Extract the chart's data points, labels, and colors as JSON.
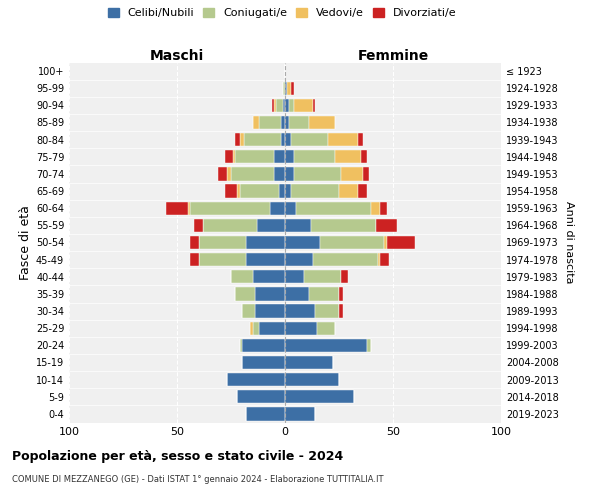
{
  "age_groups_display": [
    "100+",
    "95-99",
    "90-94",
    "85-89",
    "80-84",
    "75-79",
    "70-74",
    "65-69",
    "60-64",
    "55-59",
    "50-54",
    "45-49",
    "40-44",
    "35-39",
    "30-34",
    "25-29",
    "20-24",
    "15-19",
    "10-14",
    "5-9",
    "0-4"
  ],
  "birth_years_display": [
    "≤ 1923",
    "1924-1928",
    "1929-1933",
    "1934-1938",
    "1939-1943",
    "1944-1948",
    "1949-1953",
    "1954-1958",
    "1959-1963",
    "1964-1968",
    "1969-1973",
    "1974-1978",
    "1979-1983",
    "1984-1988",
    "1989-1993",
    "1994-1998",
    "1999-2003",
    "2004-2008",
    "2009-2013",
    "2014-2018",
    "2019-2023"
  ],
  "colors": {
    "celibi": "#3d6fa5",
    "coniugati": "#b5c98e",
    "vedovi": "#f0c060",
    "divorziati": "#cc2222"
  },
  "maschi": {
    "celibi": [
      18,
      22,
      27,
      20,
      20,
      12,
      14,
      14,
      15,
      18,
      18,
      13,
      7,
      3,
      5,
      5,
      2,
      2,
      1,
      0,
      0
    ],
    "coniugati": [
      0,
      0,
      0,
      0,
      1,
      3,
      6,
      9,
      10,
      22,
      22,
      25,
      37,
      18,
      20,
      18,
      17,
      10,
      3,
      1,
      0
    ],
    "vedovi": [
      0,
      0,
      0,
      0,
      0,
      1,
      0,
      0,
      0,
      0,
      0,
      0,
      1,
      1,
      2,
      1,
      2,
      3,
      1,
      0,
      0
    ],
    "divorziati": [
      0,
      0,
      0,
      0,
      0,
      0,
      0,
      0,
      0,
      4,
      4,
      4,
      10,
      6,
      4,
      4,
      2,
      0,
      1,
      0,
      0
    ]
  },
  "femmine": {
    "celibi": [
      14,
      32,
      25,
      22,
      38,
      15,
      14,
      11,
      9,
      13,
      16,
      12,
      5,
      3,
      4,
      4,
      3,
      2,
      2,
      1,
      0
    ],
    "coniugati": [
      0,
      0,
      0,
      0,
      2,
      8,
      11,
      14,
      17,
      30,
      30,
      30,
      35,
      22,
      22,
      19,
      17,
      9,
      2,
      0,
      0
    ],
    "vedovi": [
      0,
      0,
      0,
      0,
      0,
      0,
      0,
      0,
      0,
      1,
      1,
      0,
      4,
      9,
      10,
      12,
      14,
      12,
      9,
      2,
      0
    ],
    "divorziati": [
      0,
      0,
      0,
      0,
      0,
      0,
      2,
      2,
      3,
      4,
      13,
      10,
      3,
      4,
      3,
      3,
      2,
      0,
      1,
      1,
      0
    ]
  },
  "title": "Popolazione per età, sesso e stato civile - 2024",
  "subtitle": "COMUNE DI MEZZANEGO (GE) - Dati ISTAT 1° gennaio 2024 - Elaborazione TUTTITALIA.IT",
  "ylabel_left": "Fasce di età",
  "ylabel_right": "Anni di nascita",
  "xlabel_maschi": "Maschi",
  "xlabel_femmine": "Femmine",
  "legend_labels": [
    "Celibi/Nubili",
    "Coniugati/e",
    "Vedovi/e",
    "Divorziati/e"
  ],
  "xlim": 100,
  "bg_color": "#f0f0f0"
}
